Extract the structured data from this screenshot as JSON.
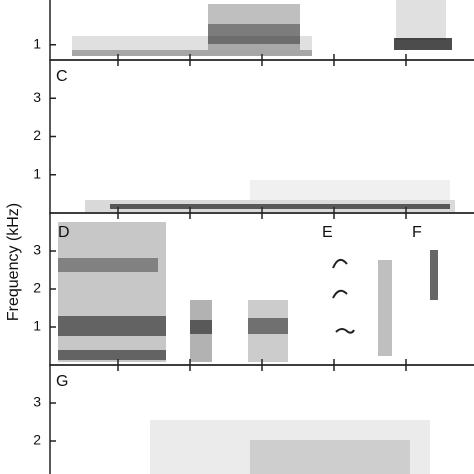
{
  "y_label": "Frequency (kHz)",
  "chart_data": [
    {
      "type": "spectrogram",
      "ylim": [
        0.6,
        2.2
      ],
      "yticks": [
        1
      ]
    },
    {
      "type": "spectrogram",
      "label": "C",
      "ylim": [
        0,
        4
      ],
      "yticks": [
        1,
        2,
        3
      ]
    },
    {
      "type": "spectrogram",
      "annotations": [
        "D",
        "E",
        "F"
      ],
      "ylim": [
        0,
        4
      ],
      "yticks": [
        1,
        2,
        3
      ]
    },
    {
      "type": "spectrogram",
      "label": "G",
      "ylim": [
        0,
        4
      ],
      "yticks": [
        2,
        3
      ]
    }
  ]
}
